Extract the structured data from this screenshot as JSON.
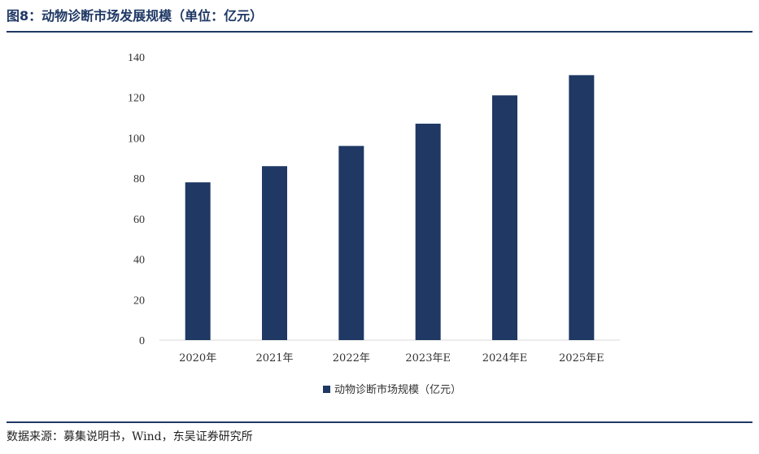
{
  "header": {
    "title": "图8：动物诊断市场发展规模（单位：亿元）"
  },
  "footer": {
    "source": "数据来源：募集说明书，Wind，东吴证券研究所"
  },
  "colors": {
    "bar": "#1f3864",
    "rule": "#1f3864",
    "axis": "#d9d9d9"
  },
  "chart_data": {
    "type": "bar",
    "categories": [
      "2020年",
      "2021年",
      "2022年",
      "2023年E",
      "2024年E",
      "2025年E"
    ],
    "series": [
      {
        "name": "动物诊断市场规模（亿元）",
        "values": [
          78,
          86,
          96,
          107,
          121,
          131
        ]
      }
    ],
    "title": "",
    "xlabel": "",
    "ylabel": "",
    "ylim": [
      0,
      140
    ],
    "yticks": [
      0,
      20,
      40,
      60,
      80,
      100,
      120,
      140
    ],
    "grid": false,
    "legend": "bottom"
  }
}
